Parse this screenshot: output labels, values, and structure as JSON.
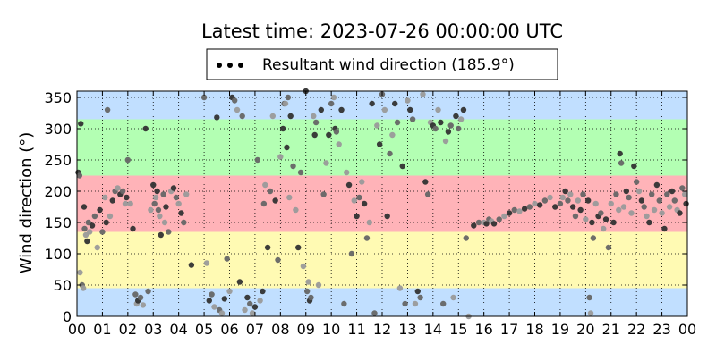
{
  "chart_data": {
    "type": "scatter",
    "title": "Latest time: 2023-07-26 00:00:00 UTC",
    "ylabel": "Wind direction (°)",
    "xlabel": "",
    "xlim": [
      0,
      24
    ],
    "ylim": [
      0,
      360
    ],
    "x_tick_labels": [
      "00",
      "01",
      "02",
      "03",
      "04",
      "05",
      "06",
      "07",
      "08",
      "09",
      "10",
      "11",
      "12",
      "13",
      "14",
      "15",
      "16",
      "17",
      "18",
      "19",
      "20",
      "21",
      "22",
      "23",
      "00"
    ],
    "y_ticks": [
      0,
      50,
      100,
      150,
      200,
      250,
      300,
      350
    ],
    "grid": true,
    "legend": {
      "label": "Resultant wind direction (185.9°)",
      "placement": "top-center"
    },
    "colors": {
      "north_band": "#c1dfff",
      "west_band": "#b3ffb3",
      "south_band": "#ffb3b8",
      "east_band": "#fffab3",
      "point_dark": "#333333",
      "point_mid": "#666666",
      "point_light": "#9a9a9a"
    },
    "bands": [
      {
        "from": 0,
        "to": 45,
        "color": "#c1dfff"
      },
      {
        "from": 45,
        "to": 135,
        "color": "#fffab3"
      },
      {
        "from": 135,
        "to": 225,
        "color": "#ffb3b8"
      },
      {
        "from": 225,
        "to": 315,
        "color": "#b3ffb3"
      },
      {
        "from": 315,
        "to": 360,
        "color": "#c1dfff"
      }
    ],
    "series": [
      {
        "points": [
          [
            0.05,
            230
          ],
          [
            0.1,
            225
          ],
          [
            0.12,
            70
          ],
          [
            0.15,
            308
          ],
          [
            0.2,
            50
          ],
          [
            0.25,
            45
          ],
          [
            0.28,
            175
          ],
          [
            0.3,
            140
          ],
          [
            0.35,
            130
          ],
          [
            0.4,
            120
          ],
          [
            0.45,
            150
          ],
          [
            0.5,
            135
          ],
          [
            0.6,
            145
          ],
          [
            0.7,
            160
          ],
          [
            0.8,
            110
          ],
          [
            0.9,
            170
          ],
          [
            1.0,
            135
          ],
          [
            1.1,
            190
          ],
          [
            1.15,
            150
          ],
          [
            1.2,
            330
          ],
          [
            1.3,
            160
          ],
          [
            1.4,
            185
          ],
          [
            1.5,
            200
          ],
          [
            1.6,
            205
          ],
          [
            1.7,
            195
          ],
          [
            1.8,
            200
          ],
          [
            1.9,
            180
          ],
          [
            1.95,
            190
          ],
          [
            2.0,
            250
          ],
          [
            2.1,
            180
          ],
          [
            2.2,
            140
          ],
          [
            2.3,
            35
          ],
          [
            2.35,
            20
          ],
          [
            2.4,
            25
          ],
          [
            2.5,
            30
          ],
          [
            2.6,
            18
          ],
          [
            2.7,
            300
          ],
          [
            2.8,
            40
          ],
          [
            2.9,
            170
          ],
          [
            3.0,
            210
          ],
          [
            3.05,
            180
          ],
          [
            3.1,
            190
          ],
          [
            3.15,
            200
          ],
          [
            3.2,
            170
          ],
          [
            3.25,
            160
          ],
          [
            3.3,
            130
          ],
          [
            3.4,
            195
          ],
          [
            3.45,
            150
          ],
          [
            3.5,
            175
          ],
          [
            3.6,
            135
          ],
          [
            3.7,
            200
          ],
          [
            3.8,
            205
          ],
          [
            3.9,
            190
          ],
          [
            4.0,
            180
          ],
          [
            4.1,
            165
          ],
          [
            4.2,
            150
          ],
          [
            4.3,
            195
          ],
          [
            4.5,
            82
          ],
          [
            5.0,
            350
          ],
          [
            5.1,
            85
          ],
          [
            5.2,
            25
          ],
          [
            5.3,
            35
          ],
          [
            5.4,
            15
          ],
          [
            5.5,
            318
          ],
          [
            5.6,
            10
          ],
          [
            5.7,
            5
          ],
          [
            5.8,
            28
          ],
          [
            5.9,
            92
          ],
          [
            6.0,
            40
          ],
          [
            6.1,
            350
          ],
          [
            6.2,
            345
          ],
          [
            6.3,
            330
          ],
          [
            6.4,
            55
          ],
          [
            6.5,
            320
          ],
          [
            6.6,
            10
          ],
          [
            6.7,
            30
          ],
          [
            6.8,
            20
          ],
          [
            6.9,
            5
          ],
          [
            7.0,
            15
          ],
          [
            7.1,
            250
          ],
          [
            7.2,
            25
          ],
          [
            7.3,
            40
          ],
          [
            7.35,
            180
          ],
          [
            7.4,
            210
          ],
          [
            7.5,
            110
          ],
          [
            7.6,
            200
          ],
          [
            7.7,
            320
          ],
          [
            7.8,
            185
          ],
          [
            7.9,
            90
          ],
          [
            8.0,
            255
          ],
          [
            8.1,
            300
          ],
          [
            8.15,
            340
          ],
          [
            8.2,
            340
          ],
          [
            8.25,
            270
          ],
          [
            8.3,
            350
          ],
          [
            8.35,
            190
          ],
          [
            8.4,
            320
          ],
          [
            8.5,
            240
          ],
          [
            8.6,
            170
          ],
          [
            8.7,
            110
          ],
          [
            8.8,
            230
          ],
          [
            8.9,
            80
          ],
          [
            9.0,
            360
          ],
          [
            9.05,
            40
          ],
          [
            9.1,
            55
          ],
          [
            9.15,
            25
          ],
          [
            9.2,
            30
          ],
          [
            9.3,
            320
          ],
          [
            9.35,
            290
          ],
          [
            9.4,
            310
          ],
          [
            9.5,
            50
          ],
          [
            9.6,
            330
          ],
          [
            9.7,
            195
          ],
          [
            9.8,
            245
          ],
          [
            9.9,
            290
          ],
          [
            10.0,
            340
          ],
          [
            10.1,
            350
          ],
          [
            10.15,
            300
          ],
          [
            10.2,
            295
          ],
          [
            10.3,
            275
          ],
          [
            10.4,
            330
          ],
          [
            10.5,
            20
          ],
          [
            10.6,
            230
          ],
          [
            10.7,
            210
          ],
          [
            10.8,
            100
          ],
          [
            10.9,
            185
          ],
          [
            11.0,
            160
          ],
          [
            11.1,
            190
          ],
          [
            11.2,
            215
          ],
          [
            11.3,
            180
          ],
          [
            11.4,
            125
          ],
          [
            11.5,
            150
          ],
          [
            11.6,
            340
          ],
          [
            11.7,
            5
          ],
          [
            11.8,
            305
          ],
          [
            11.9,
            275
          ],
          [
            12.0,
            355
          ],
          [
            12.1,
            330
          ],
          [
            12.2,
            160
          ],
          [
            12.3,
            260
          ],
          [
            12.4,
            290
          ],
          [
            12.5,
            340
          ],
          [
            12.6,
            310
          ],
          [
            12.7,
            45
          ],
          [
            12.8,
            240
          ],
          [
            12.9,
            20
          ],
          [
            13.0,
            345
          ],
          [
            13.1,
            330
          ],
          [
            13.2,
            315
          ],
          [
            13.3,
            20
          ],
          [
            13.4,
            40
          ],
          [
            13.5,
            30
          ],
          [
            13.6,
            355
          ],
          [
            13.7,
            215
          ],
          [
            13.8,
            195
          ],
          [
            13.9,
            310
          ],
          [
            14.0,
            305
          ],
          [
            14.1,
            300
          ],
          [
            14.2,
            330
          ],
          [
            14.3,
            310
          ],
          [
            14.4,
            20
          ],
          [
            14.5,
            280
          ],
          [
            14.6,
            295
          ],
          [
            14.7,
            305
          ],
          [
            14.8,
            30
          ],
          [
            14.9,
            320
          ],
          [
            15.0,
            300
          ],
          [
            15.1,
            315
          ],
          [
            15.2,
            330
          ],
          [
            15.3,
            125
          ],
          [
            15.4,
            0
          ],
          [
            15.6,
            145
          ],
          [
            15.8,
            150
          ],
          [
            16.0,
            150
          ],
          [
            16.1,
            148
          ],
          [
            16.2,
            155
          ],
          [
            16.3,
            152
          ],
          [
            16.4,
            148
          ],
          [
            16.6,
            155
          ],
          [
            16.8,
            160
          ],
          [
            17.0,
            165
          ],
          [
            17.2,
            170
          ],
          [
            17.4,
            168
          ],
          [
            17.6,
            172
          ],
          [
            17.8,
            175
          ],
          [
            18.0,
            180
          ],
          [
            18.2,
            178
          ],
          [
            18.4,
            185
          ],
          [
            18.6,
            190
          ],
          [
            18.8,
            175
          ],
          [
            19.0,
            180
          ],
          [
            19.1,
            190
          ],
          [
            19.2,
            200
          ],
          [
            19.3,
            185
          ],
          [
            19.4,
            195
          ],
          [
            19.5,
            175
          ],
          [
            19.6,
            160
          ],
          [
            19.7,
            185
          ],
          [
            19.8,
            170
          ],
          [
            19.9,
            195
          ],
          [
            20.0,
            155
          ],
          [
            20.1,
            185
          ],
          [
            20.15,
            30
          ],
          [
            20.2,
            5
          ],
          [
            20.25,
            150
          ],
          [
            20.3,
            125
          ],
          [
            20.4,
            180
          ],
          [
            20.5,
            160
          ],
          [
            20.6,
            165
          ],
          [
            20.7,
            140
          ],
          [
            20.8,
            155
          ],
          [
            20.9,
            110
          ],
          [
            21.0,
            180
          ],
          [
            21.1,
            150
          ],
          [
            21.2,
            195
          ],
          [
            21.3,
            170
          ],
          [
            21.35,
            260
          ],
          [
            21.4,
            245
          ],
          [
            21.5,
            175
          ],
          [
            21.6,
            200
          ],
          [
            21.7,
            190
          ],
          [
            21.8,
            165
          ],
          [
            21.9,
            240
          ],
          [
            22.0,
            215
          ],
          [
            22.1,
            200
          ],
          [
            22.2,
            185
          ],
          [
            22.3,
            175
          ],
          [
            22.4,
            160
          ],
          [
            22.5,
            150
          ],
          [
            22.6,
            195
          ],
          [
            22.7,
            170
          ],
          [
            22.8,
            210
          ],
          [
            22.9,
            185
          ],
          [
            23.0,
            165
          ],
          [
            23.1,
            140
          ],
          [
            23.2,
            195
          ],
          [
            23.3,
            175
          ],
          [
            23.4,
            200
          ],
          [
            23.5,
            185
          ],
          [
            23.6,
            170
          ],
          [
            23.7,
            165
          ],
          [
            23.8,
            205
          ],
          [
            23.9,
            195
          ],
          [
            23.95,
            180
          ]
        ]
      }
    ]
  }
}
